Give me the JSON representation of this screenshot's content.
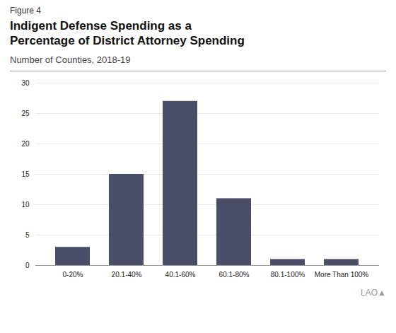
{
  "chart_data": {
    "type": "bar",
    "title": "Indigent Defense Spending as a\nPercentage of District Attorney Spending",
    "subtitle": "Number of Counties, 2018-19",
    "annotations": [
      "Figure 4",
      "LAO▲"
    ],
    "categories": [
      "0-20%",
      "20.1-40%",
      "40.1-60%",
      "60.1-80%",
      "80.1-100%",
      "More Than 100%"
    ],
    "values": [
      3,
      15,
      27,
      11,
      1,
      1
    ],
    "color": "#4a4e69",
    "ylim": [
      0,
      30
    ],
    "yticks": [
      0,
      5,
      10,
      15,
      20,
      25,
      30
    ],
    "grid": true
  }
}
